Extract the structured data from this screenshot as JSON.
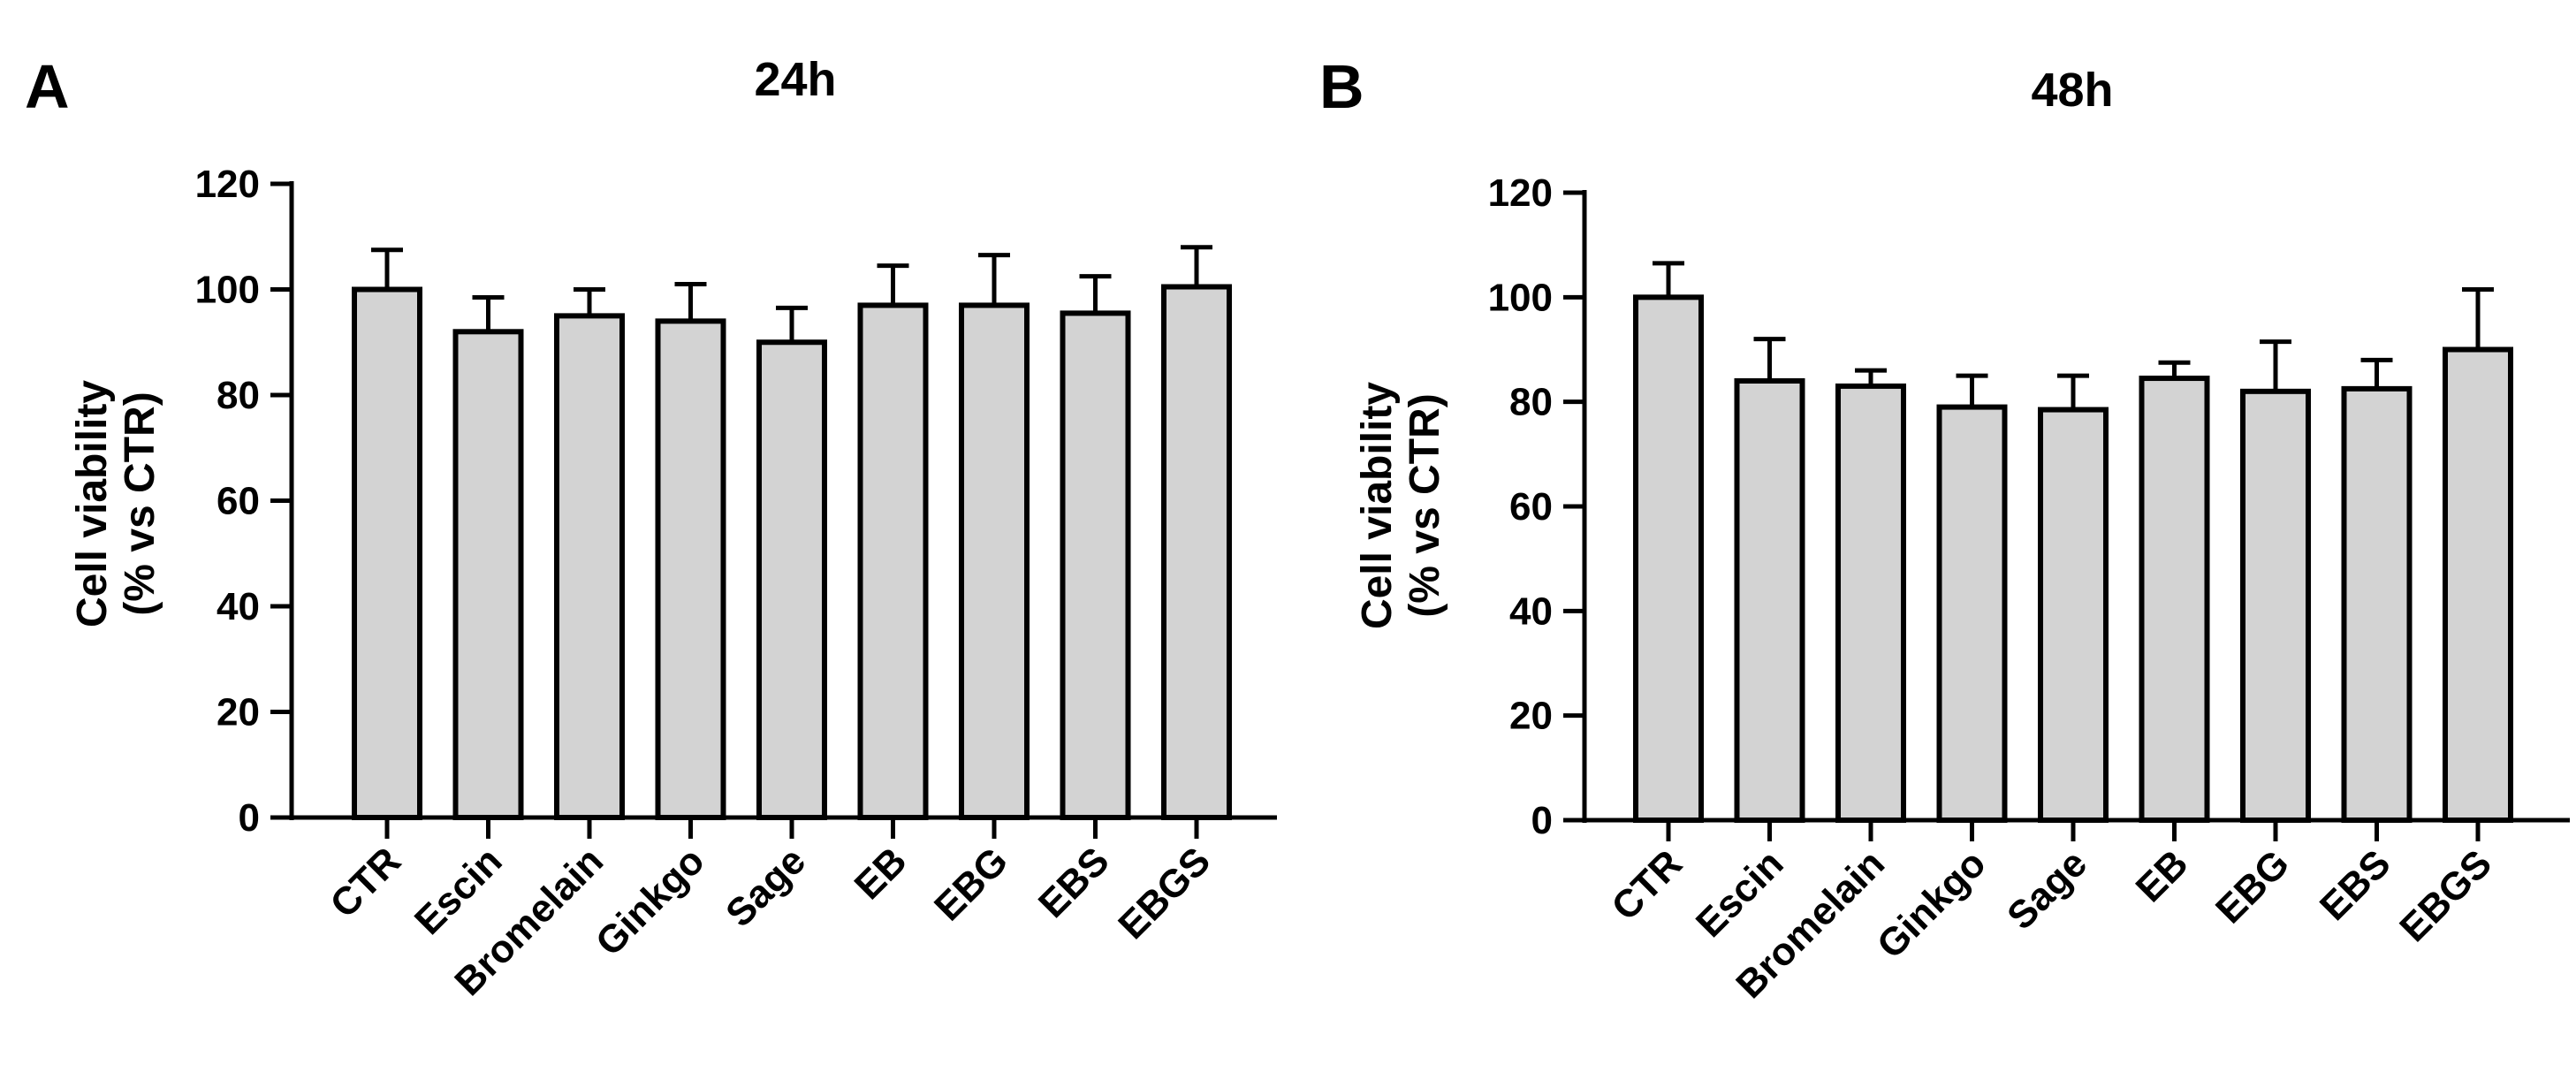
{
  "figure": {
    "bar_fill": "#d3d3d3",
    "stroke_color": "#000000"
  },
  "chart_data": [
    {
      "type": "bar",
      "panel_label": "A",
      "title": "24h",
      "ylabel_line1": "Cell viability",
      "ylabel_line2": "(% vs CTR)",
      "xlabel": "",
      "categories": [
        "CTR",
        "Escin",
        "Bromelain",
        "Ginkgo",
        "Sage",
        "EB",
        "EBG",
        "EBS",
        "EBGS"
      ],
      "values": [
        100,
        92,
        95,
        94,
        90,
        97,
        97,
        95.5,
        100.5
      ],
      "errors": [
        7.5,
        6.5,
        5,
        7,
        6.5,
        7.5,
        9.5,
        7,
        7.5
      ],
      "ylim": [
        0,
        120
      ],
      "yticks": [
        0,
        20,
        40,
        60,
        80,
        100,
        120
      ],
      "ytick_labels": [
        "0",
        "20",
        "40",
        "60",
        "80",
        "100",
        "120"
      ],
      "grid": false
    },
    {
      "type": "bar",
      "panel_label": "B",
      "title": "48h",
      "ylabel_line1": "Cell viability",
      "ylabel_line2": "(% vs CTR)",
      "xlabel": "",
      "categories": [
        "CTR",
        "Escin",
        "Bromelain",
        "Ginkgo",
        "Sage",
        "EB",
        "EBG",
        "EBS",
        "EBGS"
      ],
      "values": [
        100,
        84,
        83,
        79,
        78.5,
        84.5,
        82,
        82.5,
        90
      ],
      "errors": [
        6.5,
        8,
        3,
        6,
        6.5,
        3,
        9.5,
        5.5,
        11.5
      ],
      "ylim": [
        0,
        120
      ],
      "yticks": [
        0,
        20,
        40,
        60,
        80,
        100,
        120
      ],
      "ytick_labels": [
        "0",
        "20",
        "40",
        "60",
        "80",
        "100",
        "120"
      ],
      "grid": false
    }
  ]
}
